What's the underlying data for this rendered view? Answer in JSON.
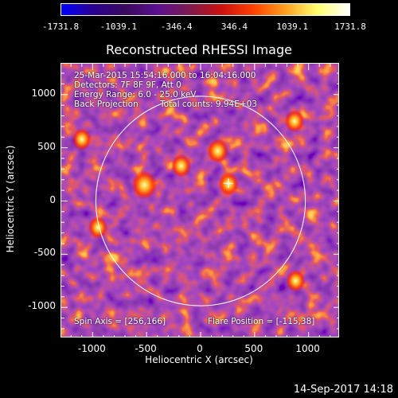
{
  "colorbar": {
    "ticks": [
      "-1731.8",
      "-1039.1",
      "-346.4",
      "346.4",
      "1039.1",
      "1731.8"
    ],
    "colors": [
      "#0000ff",
      "#2a0090",
      "#3a0a5c",
      "#5a1090",
      "#7e1a4e",
      "#cc1010",
      "#ff4000",
      "#ffa020",
      "#ffff70",
      "#ffffff"
    ]
  },
  "title": "Reconstructed RHESSI Image",
  "info": {
    "line1": "25-Mar-2015 15:54:16.000 to 16:04:16.000",
    "line2": "Detectors: 7F 8F 9F, Att 0",
    "line3": "Energy Range: 6.0 - 25.0 keV",
    "line4a": "Back Projection",
    "line4b": "Total counts: 9.94E+03",
    "spin_axis": "Spin Axis = [256,166]",
    "flare_position": "Flare Position = [-115,38]"
  },
  "chart_data": {
    "type": "heatmap",
    "xlabel": "Heliocentric X (arcsec)",
    "ylabel": "Heliocentric Y (arcsec)",
    "xlim": [
      -1290,
      1290
    ],
    "ylim": [
      -1290,
      1290
    ],
    "xticks": [
      "-1000",
      "-500",
      "0",
      "500",
      "1000"
    ],
    "yticks": [
      "1000",
      "500",
      "0",
      "-500",
      "-1000"
    ],
    "solar_limb_radius": 970,
    "sun_center": [
      0,
      0
    ],
    "marker": [
      256,
      166
    ],
    "value_range": [
      -1731.8,
      1731.8
    ],
    "bright_sources": [
      {
        "x": -520,
        "y": 150,
        "value": 1700
      },
      {
        "x": -180,
        "y": 330,
        "value": 1100
      },
      {
        "x": 160,
        "y": 470,
        "value": 1250
      },
      {
        "x": 260,
        "y": 160,
        "value": 1100
      },
      {
        "x": 870,
        "y": 750,
        "value": 1050
      },
      {
        "x": -1100,
        "y": 580,
        "value": 1000
      },
      {
        "x": -950,
        "y": -250,
        "value": 1000
      },
      {
        "x": 880,
        "y": -750,
        "value": 1000
      }
    ]
  },
  "timestamp": "14-Sep-2017 14:18"
}
